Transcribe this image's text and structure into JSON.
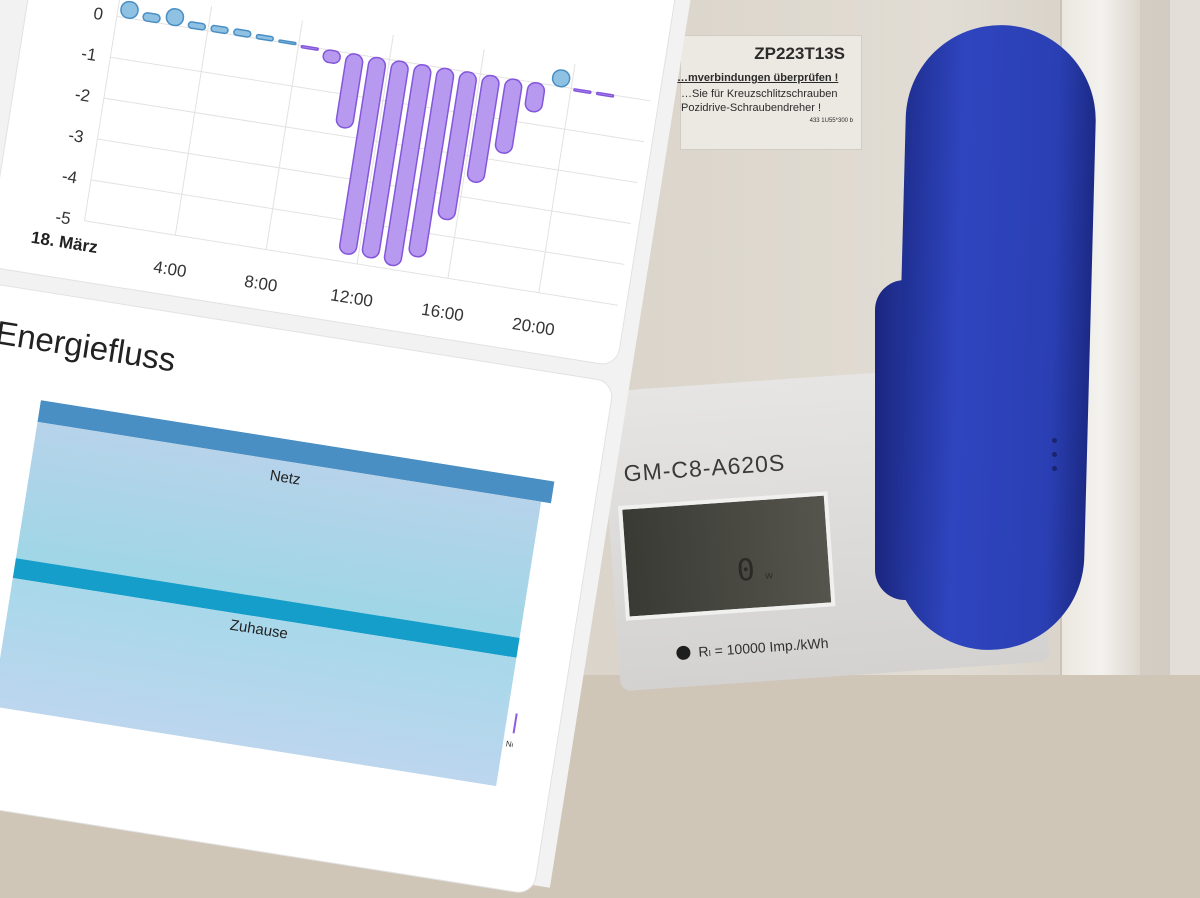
{
  "chart_data": {
    "type": "bar",
    "x_label_start": "18. März",
    "x_ticks": [
      "4:00",
      "8:00",
      "12:00",
      "16:00",
      "20:00"
    ],
    "y_ticks": [
      "0",
      "-1",
      "-2",
      "-3",
      "-4",
      "-5"
    ],
    "ylim": [
      -5,
      0.5
    ],
    "grid": true,
    "hours": [
      0,
      1,
      2,
      3,
      4,
      5,
      6,
      7,
      8,
      9,
      10,
      11,
      12,
      13,
      14,
      15,
      16,
      17,
      18,
      19,
      20,
      21
    ],
    "values": [
      0.4,
      0.2,
      0.4,
      0.15,
      0.15,
      0.15,
      0.1,
      0.05,
      -0.05,
      -0.3,
      -1.8,
      -4.8,
      -4.8,
      -4.9,
      -4.6,
      -3.6,
      -2.6,
      -1.8,
      -0.7,
      0.4,
      -0.02,
      -0.02
    ],
    "colors": {
      "positive": "#8fc1e3",
      "negative": "#b79af0",
      "positive_stroke": "#4a8fc4",
      "negative_stroke": "#8456db"
    }
  },
  "energy": {
    "title": "Energiefluss",
    "netz": "Netz",
    "zuhause": "Zuhause",
    "netz_small": "Netz"
  },
  "photo": {
    "sticker_code": "ZP223T13S",
    "sticker_warn": "…mverbindungen überprüfen !",
    "sticker_line1": "…Sie für Kreuzschlitzschrauben",
    "sticker_line2": "Pozidrive-Schraubendreher !",
    "sticker_small": "433 1U55*300 b",
    "meter_model": "GM-C8-A620S",
    "lcd_value": "0",
    "lcd_unit": "W",
    "meter_rate": "Rₗ = 10000 Imp./kWh"
  }
}
